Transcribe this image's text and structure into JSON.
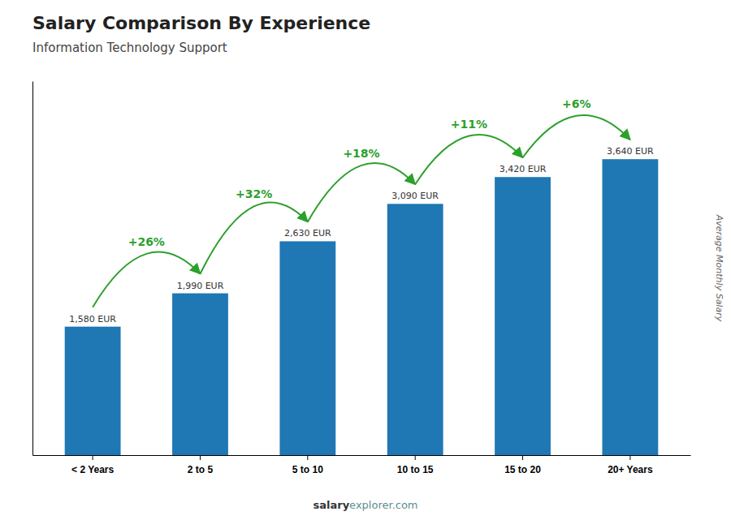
{
  "chart_data": {
    "type": "bar",
    "title": "Salary Comparison By Experience",
    "subtitle": "Information Technology Support",
    "ylabel": "Average Monthly Salary",
    "categories": [
      "< 2 Years",
      "2 to 5",
      "5 to 10",
      "10 to 15",
      "15 to 20",
      "20+ Years"
    ],
    "values": [
      1580,
      1990,
      2630,
      3090,
      3420,
      3640
    ],
    "value_labels": [
      "1,580 EUR",
      "1,990 EUR",
      "2,630 EUR",
      "3,090 EUR",
      "3,420 EUR",
      "3,640 EUR"
    ],
    "data_labels": true,
    "annotations": [
      "+26%",
      "+32%",
      "+18%",
      "+11%",
      "+6%"
    ],
    "watermark": [
      "salary",
      "explorer.com"
    ],
    "ylim": [
      0,
      4600
    ],
    "yticks": [],
    "tick_labels": "x"
  }
}
